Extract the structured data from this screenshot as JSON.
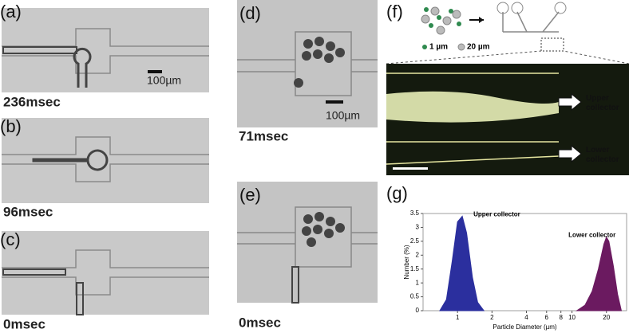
{
  "panels": [
    {
      "label": "(a)",
      "caption": "236msec",
      "scale": "100µm"
    },
    {
      "label": "(b)",
      "caption": "96msec"
    },
    {
      "label": "(c)",
      "caption": "0msec"
    },
    {
      "label": "(d)",
      "caption": "71msec",
      "scale": "100µm"
    },
    {
      "label": "(e)",
      "caption": "0msec"
    },
    {
      "label": "(f)",
      "legend": [
        "1 µm",
        "20 µm"
      ],
      "outlets": [
        "Upper collector",
        "Lower collector"
      ]
    },
    {
      "label": "(g)"
    }
  ],
  "chart_data": {
    "type": "area",
    "xlabel": "Particle Diameter (µm)",
    "ylabel": "Number (%)",
    "log_x": true,
    "xlim": [
      0.5,
      30
    ],
    "xticks": [
      1,
      2,
      4,
      6,
      8,
      10,
      20
    ],
    "ylim": [
      0,
      3.5
    ],
    "yticks": [
      0,
      0.5,
      1,
      1.5,
      2,
      2.5,
      3,
      3.5
    ],
    "series": [
      {
        "name": "Upper collector",
        "color": "#2b2f9e",
        "x": [
          0.7,
          0.8,
          0.9,
          1,
          1.1,
          1.2,
          1.35,
          1.5,
          1.7
        ],
        "values": [
          0,
          0.4,
          1.8,
          3.2,
          3.4,
          2.8,
          1.2,
          0.3,
          0
        ]
      },
      {
        "name": "Lower collector",
        "color": "#6b1a60",
        "x": [
          11,
          13,
          15,
          17,
          19,
          20,
          21,
          23,
          25,
          27
        ],
        "values": [
          0,
          0.2,
          0.7,
          1.5,
          2.4,
          2.65,
          2.5,
          1.6,
          0.6,
          0
        ]
      }
    ]
  }
}
